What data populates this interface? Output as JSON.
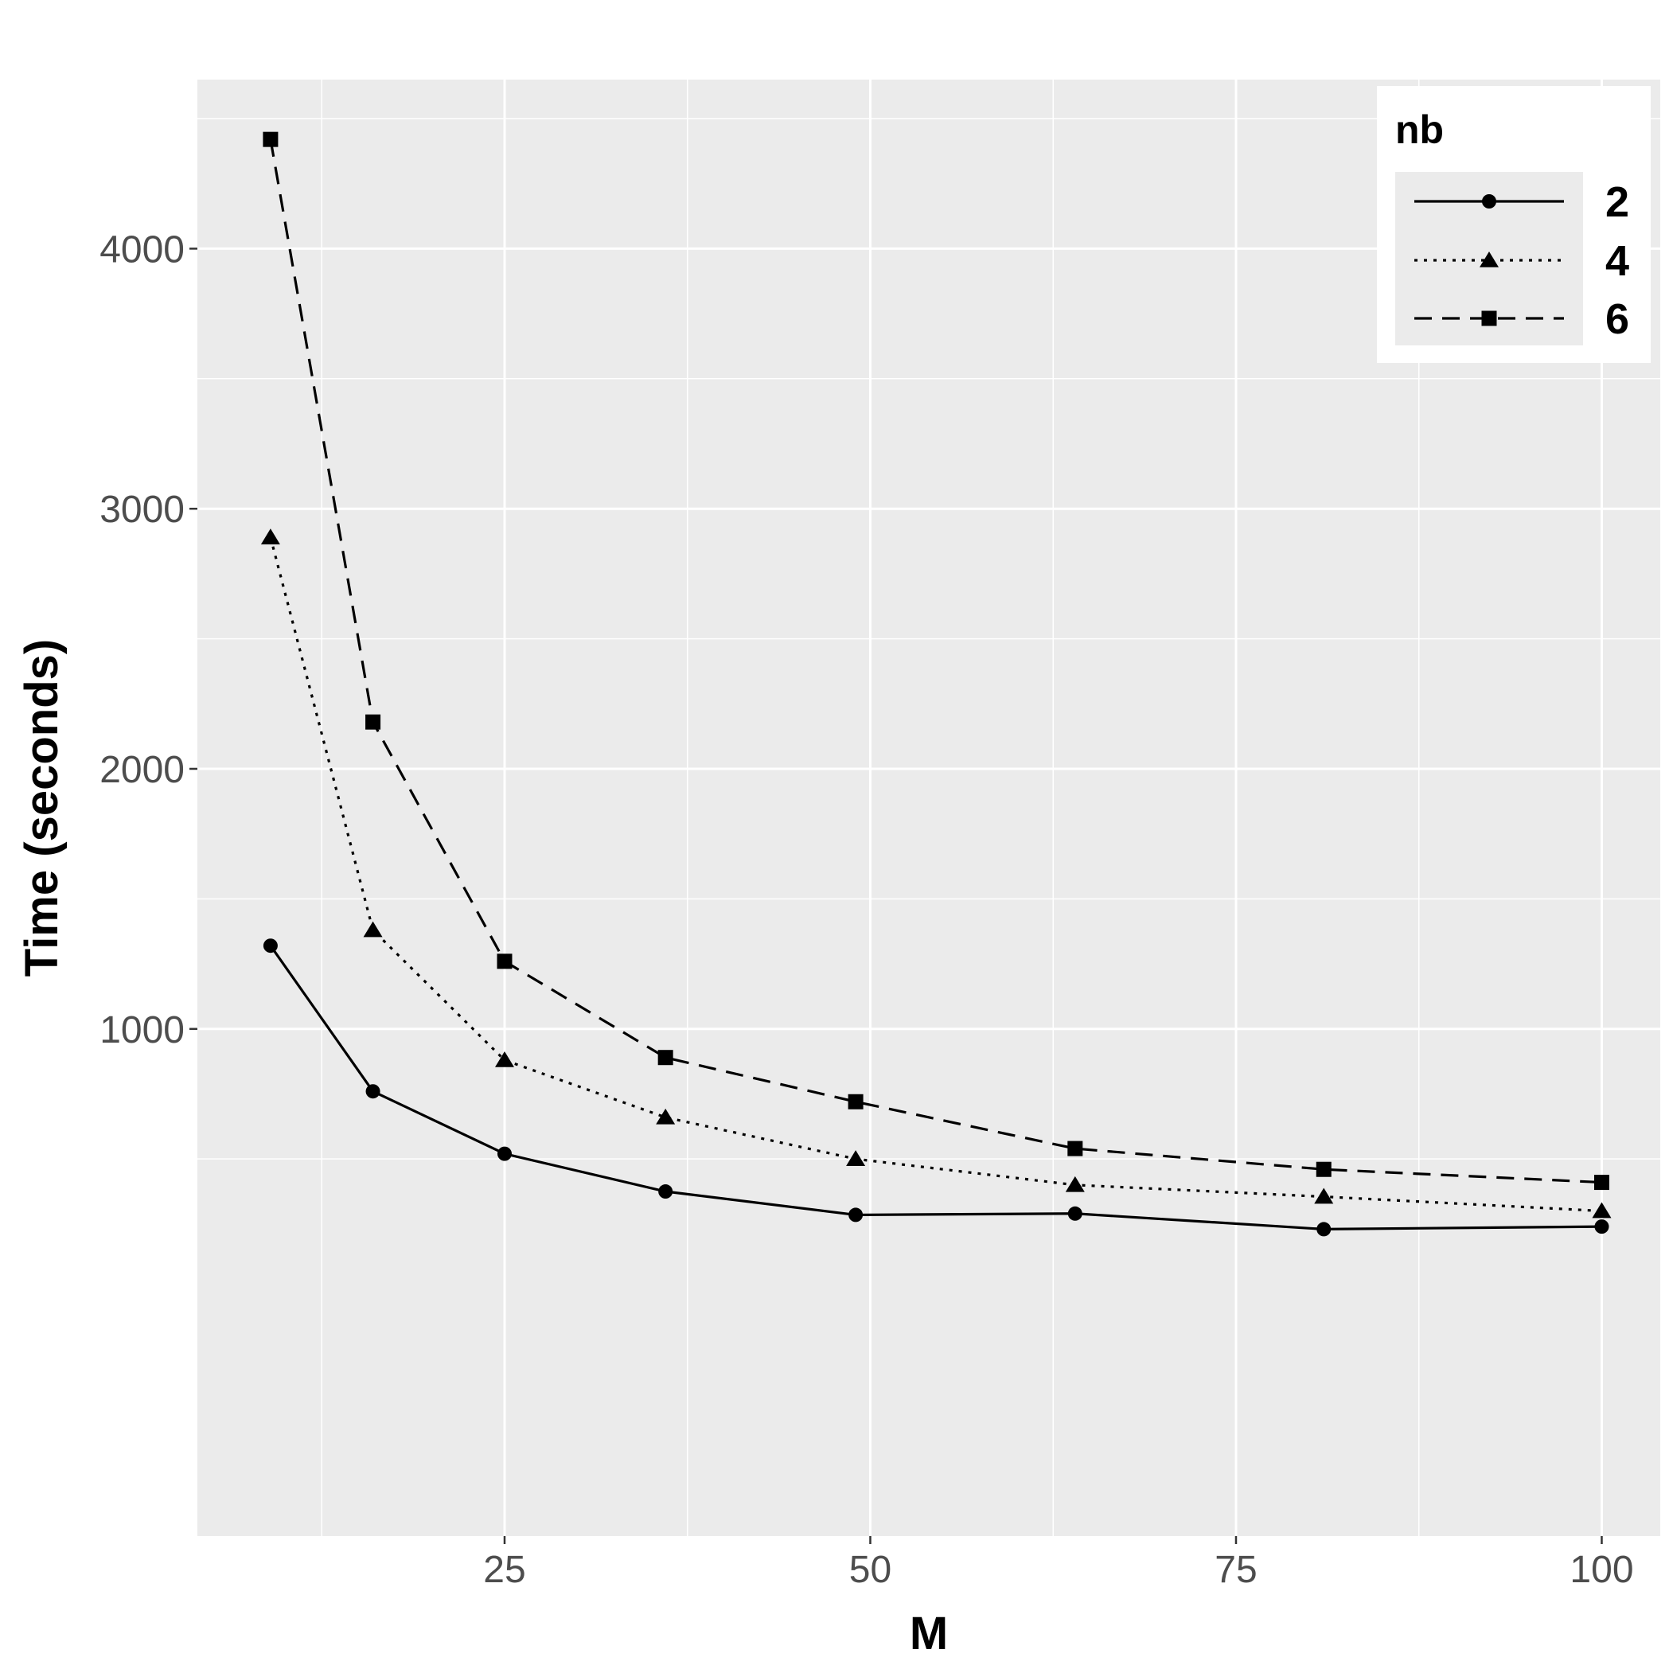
{
  "chart_data": {
    "type": "line",
    "xlabel": "M",
    "ylabel": "Time (seconds)",
    "xlim": [
      4,
      104
    ],
    "ylim": [
      -950,
      4650
    ],
    "x_ticks": [
      25,
      50,
      75,
      100
    ],
    "x_ticks_minor": [
      12.5,
      37.5,
      62.5,
      87.5
    ],
    "y_ticks": [
      1000,
      2000,
      3000,
      4000
    ],
    "y_ticks_minor": [
      500,
      1500,
      2500,
      3500,
      4500
    ],
    "x_tick_labels": [
      "25",
      "50",
      "75",
      "100"
    ],
    "y_tick_labels": [
      "1000",
      "2000",
      "3000",
      "4000"
    ],
    "grid": true,
    "legend": {
      "title": "nb",
      "placement": "top-right"
    },
    "x": [
      9,
      16,
      25,
      36,
      49,
      64,
      81,
      100
    ],
    "series": [
      {
        "name": "2",
        "line": "solid",
        "marker": "circle",
        "values": [
          1320,
          760,
          520,
          375,
          285,
          290,
          230,
          240
        ]
      },
      {
        "name": "4",
        "line": "dotted",
        "marker": "triangle",
        "values": [
          2890,
          1380,
          880,
          660,
          500,
          400,
          355,
          300
        ]
      },
      {
        "name": "6",
        "line": "dashed",
        "marker": "square",
        "values": [
          4420,
          2180,
          1260,
          890,
          720,
          540,
          460,
          410
        ]
      }
    ]
  },
  "colors": {
    "panel": "#ebebeb",
    "grid": "#ffffff",
    "line": "#000000",
    "tick_text": "#4d4d4d"
  }
}
